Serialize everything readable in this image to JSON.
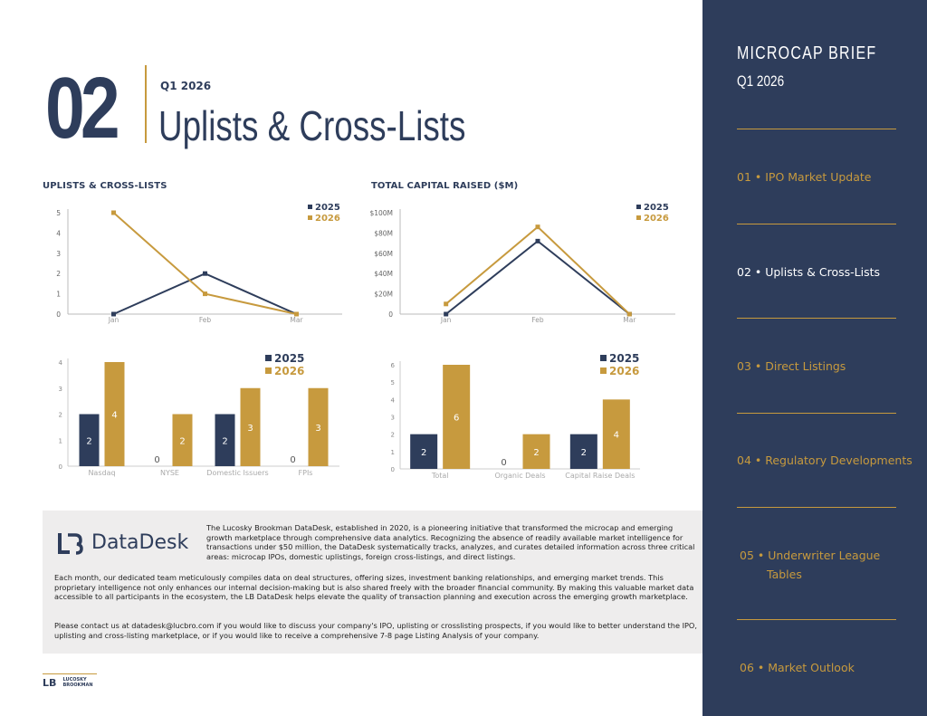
{
  "header": {
    "section_number": "02",
    "quarter": "Q1 2026",
    "title": "Uplists & Cross-Lists"
  },
  "colors": {
    "navy": "#2e3d5b",
    "gold": "#c79a3e"
  },
  "chart_data": [
    {
      "type": "line",
      "title": "UPLISTS & CROSS-LISTS",
      "categories": [
        "Jan",
        "Feb",
        "Mar"
      ],
      "series": [
        {
          "name": "2025",
          "values": [
            0,
            2,
            0
          ],
          "color": "#2e3d5b"
        },
        {
          "name": "2026",
          "values": [
            5,
            1,
            0
          ],
          "color": "#c79a3e"
        }
      ],
      "ylim": [
        0,
        5
      ],
      "yticks": [
        "0",
        "1",
        "2",
        "3",
        "4",
        "5"
      ],
      "legend": "top-right",
      "grid": false
    },
    {
      "type": "line",
      "title": "TOTAL CAPITAL RAISED ($M)",
      "categories": [
        "Jan",
        "Feb",
        "Mar"
      ],
      "series": [
        {
          "name": "2025",
          "values": [
            0,
            72,
            0
          ],
          "color": "#2e3d5b"
        },
        {
          "name": "2026",
          "values": [
            10,
            86,
            0
          ],
          "color": "#c79a3e"
        }
      ],
      "ylim": [
        0,
        100
      ],
      "yticks": [
        "0",
        "$20M",
        "$40M",
        "$60M",
        "$80M",
        "$100M"
      ],
      "legend": "top-right",
      "grid": false
    },
    {
      "type": "bar",
      "title": "",
      "categories": [
        "Nasdaq",
        "NYSE",
        "Domestic Issuers",
        "FPIs"
      ],
      "series": [
        {
          "name": "2025",
          "values": [
            2,
            0,
            2,
            0
          ],
          "color": "#2e3d5b"
        },
        {
          "name": "2026",
          "values": [
            4,
            2,
            3,
            3
          ],
          "color": "#c79a3e"
        }
      ],
      "ylim": [
        0,
        4
      ],
      "yticks": [
        "0",
        "1",
        "2",
        "3",
        "4"
      ],
      "legend": "top-right",
      "grid": false
    },
    {
      "type": "bar",
      "title": "",
      "categories": [
        "Total",
        "Organic Deals",
        "Capital Raise Deals"
      ],
      "series": [
        {
          "name": "2025",
          "values": [
            2,
            0,
            2
          ],
          "color": "#2e3d5b"
        },
        {
          "name": "2026",
          "values": [
            6,
            2,
            4
          ],
          "color": "#c79a3e"
        }
      ],
      "ylim": [
        0,
        6
      ],
      "yticks": [
        "0",
        "1",
        "2",
        "3",
        "4",
        "5",
        "6"
      ],
      "legend": "top-right",
      "grid": false
    }
  ],
  "datadesk": {
    "logo_text": "DataDesk",
    "intro": "The Lucosky Brookman DataDesk, established in 2020, is a pioneering initiative that transformed the microcap and emerging growth marketplace through comprehensive data analytics. Recognizing the absence of readily available market intelligence for transactions under $50 million, the DataDesk systematically tracks, analyzes, and curates detailed information across three critical areas: microcap IPOs, domestic uplistings, foreign cross-listings, and direct listings.",
    "paragraph2": "Each month, our dedicated team meticulously compiles data on deal structures, offering sizes, investment banking relationships, and emerging market trends. This proprietary intelligence not only enhances our internal decision-making but is also shared freely with the broader financial community. By making this valuable market data accessible to all participants in the ecosystem, the LB DataDesk helps elevate the quality of transaction planning and execution across the emerging growth marketplace.",
    "paragraph3": "Please contact us at datadesk@lucbro.com if you would like to discuss your company's IPO, uplisting or crosslisting prospects, if you would like to better understand the IPO, uplisting and cross-listing marketplace, or if you would like to receive a comprehensive 7-8 page Listing Analysis of your company."
  },
  "footer": {
    "logo_mark": "LB",
    "logo_line1": "LUCOSKY",
    "logo_line2": "BROOKMAN"
  },
  "sidebar": {
    "title": "MICROCAP BRIEF",
    "subtitle": "Q1 2026",
    "items": [
      {
        "label": "01 • IPO Market Update"
      },
      {
        "label": "02 • Uplists & Cross-Lists"
      },
      {
        "label": "03 • Direct Listings"
      },
      {
        "label": "04 • Regulatory Developments"
      },
      {
        "label": "05 • Underwriter League",
        "label_cont": "Tables"
      },
      {
        "label": "06 • Market Outlook"
      }
    ]
  }
}
